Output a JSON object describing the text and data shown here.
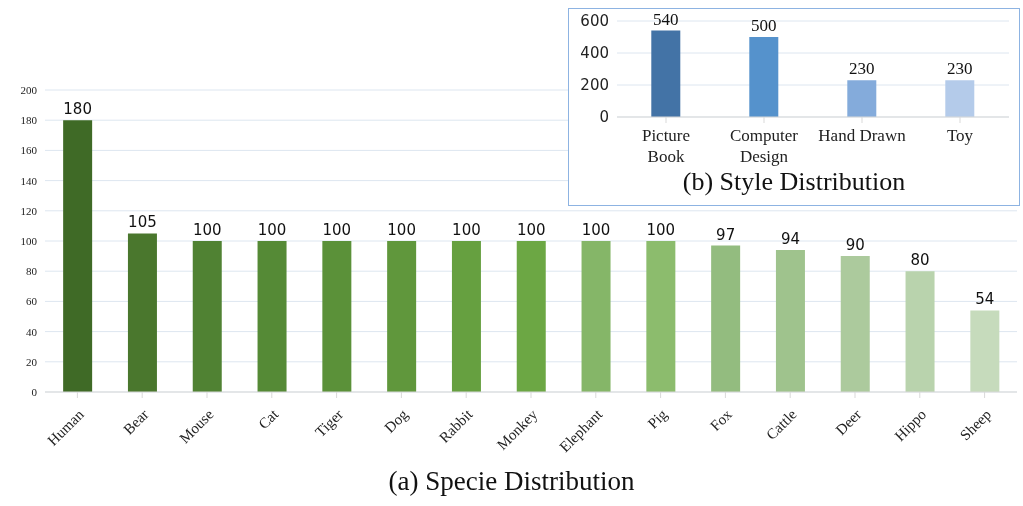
{
  "chart_data": [
    {
      "type": "bar",
      "title": "(a) Specie Distribution",
      "categories": [
        "Human",
        "Bear",
        "Mouse",
        "Cat",
        "Tiger",
        "Dog",
        "Rabbit",
        "Monkey",
        "Elephant",
        "Pig",
        "Fox",
        "Cattle",
        "Deer",
        "Hippo",
        "Sheep"
      ],
      "values": [
        180,
        105,
        100,
        100,
        100,
        100,
        100,
        100,
        100,
        100,
        97,
        94,
        90,
        80,
        54
      ],
      "colors": [
        "#3f6a26",
        "#4a772d",
        "#508233",
        "#558a36",
        "#5b9139",
        "#60973c",
        "#66a040",
        "#6ca744",
        "#85b668",
        "#8cbc6d",
        "#93bc7f",
        "#9fc38d",
        "#acca9d",
        "#b9d3ad",
        "#c6dbbc"
      ],
      "ylim": [
        0,
        200
      ],
      "yticks": [
        0,
        20,
        40,
        60,
        80,
        100,
        120,
        140,
        160,
        180,
        200
      ],
      "grid": "y",
      "data_labels": true
    },
    {
      "type": "bar",
      "title": "(b) Style Distribution",
      "categories": [
        "Picture Book",
        "Computer Design",
        "Hand Drawn",
        "Toy"
      ],
      "values": [
        540,
        500,
        230,
        230
      ],
      "colors": [
        "#4373a6",
        "#5592cc",
        "#84abdb",
        "#b4cbea"
      ],
      "ylim": [
        0,
        600
      ],
      "yticks": [
        0,
        200,
        400,
        600
      ],
      "grid": "y",
      "data_labels": true
    }
  ]
}
